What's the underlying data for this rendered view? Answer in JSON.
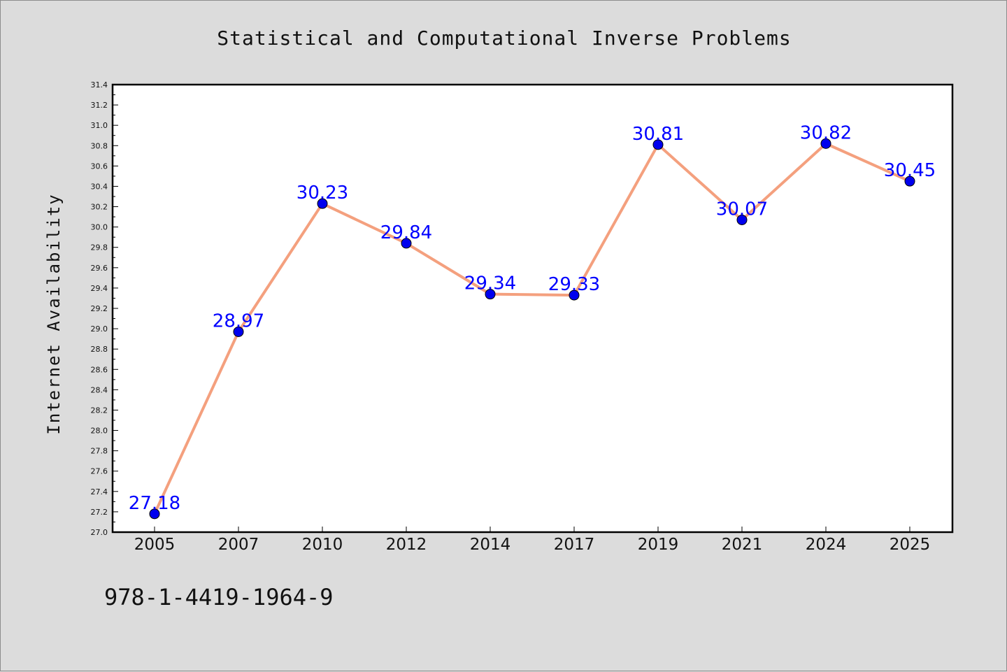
{
  "chart_data": {
    "type": "line",
    "title": "Statistical and Computational Inverse Problems",
    "ylabel": "Internet Availability",
    "xlabel": "",
    "categories": [
      "2005",
      "2007",
      "2010",
      "2012",
      "2014",
      "2017",
      "2019",
      "2021",
      "2024",
      "2025"
    ],
    "series": [
      {
        "values": [
          27.18,
          28.97,
          30.23,
          29.84,
          29.34,
          29.33,
          30.81,
          30.07,
          30.82,
          30.45
        ],
        "labels": [
          "27.18",
          "28.97",
          "30.23",
          "29.84",
          "29.34",
          "29.33",
          "30.81",
          "30.07",
          "30.82",
          "30.45"
        ]
      }
    ],
    "ylim": [
      27.0,
      31.4
    ],
    "yticks": [
      "27.0",
      "27.2",
      "27.4",
      "27.6",
      "27.8",
      "28.0",
      "28.2",
      "28.4",
      "28.6",
      "28.8",
      "29.0",
      "29.2",
      "29.4",
      "29.6",
      "29.8",
      "30.0",
      "30.2",
      "30.4",
      "30.6",
      "30.8",
      "31.0",
      "31.2",
      "31.4"
    ],
    "grid": false,
    "legend": "none",
    "line_color": "#f4a07e",
    "marker_color": "#0000ee",
    "label_color": "#0000ff",
    "annotation": "978-1-4419-1964-9"
  }
}
